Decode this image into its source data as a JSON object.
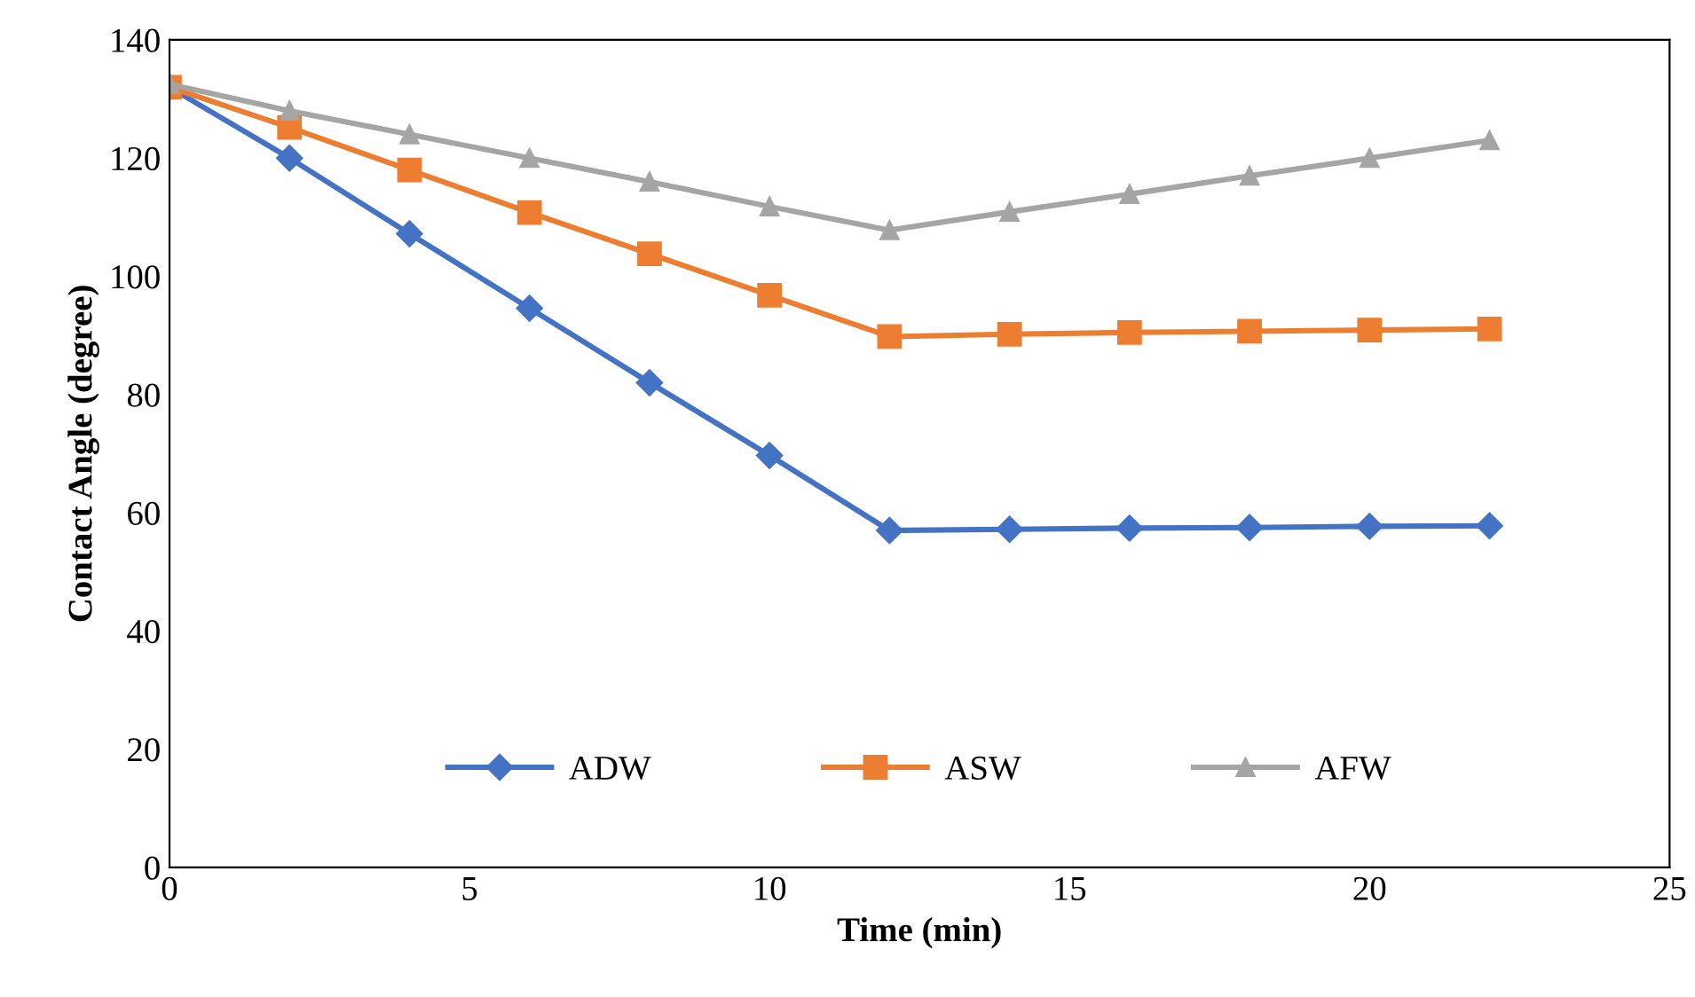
{
  "chart_data": {
    "type": "line",
    "xlabel": "Time (min)",
    "ylabel": "Contact Angle (degree)",
    "x": [
      0,
      2,
      4,
      6,
      8,
      10,
      12,
      14,
      16,
      18,
      20,
      22
    ],
    "series": [
      {
        "name": "ADW",
        "color": "#4472c4",
        "marker": "diamond",
        "values": [
          132,
          120,
          107.2,
          94.6,
          82,
          69.7,
          57,
          57.2,
          57.4,
          57.5,
          57.7,
          57.8
        ]
      },
      {
        "name": "ASW",
        "color": "#ed7d31",
        "marker": "square",
        "values": [
          132,
          125.2,
          118,
          110.8,
          103.8,
          96.8,
          89.8,
          90.2,
          90.5,
          90.7,
          90.9,
          91.1
        ]
      },
      {
        "name": "AFW",
        "color": "#a5a5a5",
        "marker": "triangle",
        "values": [
          132.5,
          128,
          124,
          120,
          116,
          111.8,
          107.8,
          110.9,
          113.9,
          117,
          120,
          123
        ]
      }
    ],
    "xlim": [
      0,
      25
    ],
    "xticks": [
      0,
      5,
      10,
      15,
      20,
      25
    ],
    "ylim": [
      0,
      140
    ],
    "yticks": [
      0,
      20,
      40,
      60,
      80,
      100,
      120,
      140
    ],
    "grid": false,
    "legend": "bottom",
    "line_style": "solid"
  }
}
